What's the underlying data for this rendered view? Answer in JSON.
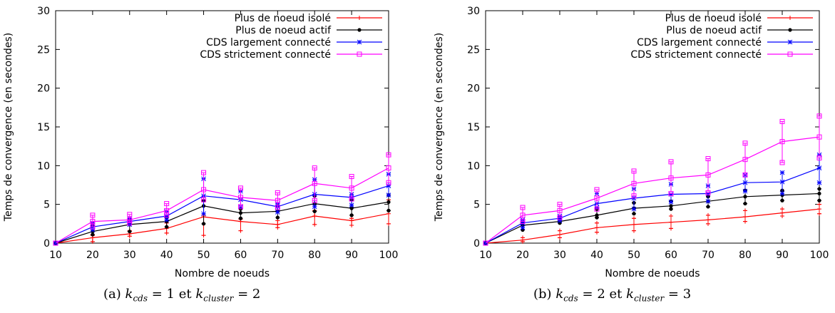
{
  "captions": {
    "a": {
      "label": "(a)",
      "k1": "k",
      "s1": "cds",
      "eq1": "= 1",
      "et": "et",
      "k2": "k",
      "s2": "cluster",
      "eq2": "= 2"
    },
    "b": {
      "label": "(b)",
      "k1": "k",
      "s1": "cds",
      "eq1": "= 2",
      "et": "et",
      "k2": "k",
      "s2": "cluster",
      "eq2": "= 3"
    }
  },
  "chart_data": [
    {
      "type": "line",
      "xlabel": "Nombre de noeuds",
      "ylabel": "Temps de convergence (en secondes)",
      "xlim": [
        10,
        100
      ],
      "ylim": [
        0,
        30
      ],
      "xticks": [
        10,
        20,
        30,
        40,
        50,
        60,
        70,
        80,
        90,
        100
      ],
      "yticks": [
        0,
        5,
        10,
        15,
        20,
        25,
        30
      ],
      "legend_position": "top-right",
      "x": [
        10,
        20,
        30,
        40,
        50,
        60,
        70,
        80,
        90,
        100
      ],
      "series": [
        {
          "name": "Plus de noeud isolé",
          "color": "#ff0000",
          "marker": "plus",
          "values": [
            0,
            0.7,
            1.2,
            1.9,
            3.4,
            2.8,
            2.4,
            3.5,
            2.9,
            3.8
          ],
          "err": [
            [
              0,
              0.2,
              0.9,
              1.3,
              1.0,
              1.6,
              2.0,
              2.4,
              2.3,
              2.5
            ],
            [
              0,
              1.0,
              1.6,
              2.6,
              3.6,
              3.1,
              2.9,
              4.2,
              3.2,
              5.6
            ]
          ]
        },
        {
          "name": "Plus de noeud actif",
          "color": "#000000",
          "marker": "dot",
          "values": [
            0,
            1.5,
            2.4,
            2.8,
            4.8,
            3.9,
            4.1,
            5.1,
            4.5,
            5.3
          ],
          "err": [
            [
              0,
              1.1,
              1.5,
              2.1,
              2.5,
              3.2,
              3.3,
              4.1,
              3.6,
              4.2
            ],
            [
              0,
              2.3,
              3.0,
              3.3,
              5.5,
              4.4,
              4.8,
              6.1,
              5.6,
              6.2
            ]
          ]
        },
        {
          "name": "CDS largement connecté",
          "color": "#0000ff",
          "marker": "star",
          "values": [
            0,
            2.1,
            2.8,
            3.5,
            6.1,
            5.6,
            4.7,
            6.3,
            5.9,
            7.4
          ],
          "err": [
            [
              0,
              1.7,
              2.4,
              3.0,
              3.8,
              4.7,
              4.0,
              4.7,
              4.9,
              6.2
            ],
            [
              0,
              2.6,
              3.2,
              4.1,
              8.3,
              6.7,
              5.1,
              8.2,
              6.3,
              8.9
            ]
          ]
        },
        {
          "name": "CDS strictement connecté",
          "color": "#ff00ff",
          "marker": "square",
          "values": [
            0,
            2.8,
            3.0,
            4.2,
            6.9,
            5.9,
            5.5,
            7.7,
            7.1,
            9.7
          ],
          "err": [
            [
              0,
              2.1,
              2.6,
              3.6,
              5.6,
              4.7,
              4.6,
              5.5,
              5.7,
              7.8
            ],
            [
              0,
              3.6,
              3.7,
              5.1,
              9.1,
              7.1,
              6.5,
              9.7,
              8.6,
              11.4
            ]
          ]
        }
      ]
    },
    {
      "type": "line",
      "xlabel": "Nombre de noeuds",
      "ylabel": "Temps de convergence (en secondes)",
      "xlim": [
        10,
        100
      ],
      "ylim": [
        0,
        30
      ],
      "xticks": [
        10,
        20,
        30,
        40,
        50,
        60,
        70,
        80,
        90,
        100
      ],
      "yticks": [
        0,
        5,
        10,
        15,
        20,
        25,
        30
      ],
      "legend_position": "top-right",
      "x": [
        10,
        20,
        30,
        40,
        50,
        60,
        70,
        80,
        90,
        100
      ],
      "series": [
        {
          "name": "Plus de noeud isolé",
          "color": "#ff0000",
          "marker": "plus",
          "values": [
            0,
            0.4,
            1.1,
            2.0,
            2.4,
            2.7,
            3.0,
            3.4,
            3.9,
            4.4
          ],
          "err": [
            [
              0,
              0.2,
              0.7,
              1.4,
              1.6,
              1.9,
              2.5,
              2.8,
              3.5,
              3.8
            ],
            [
              0,
              0.7,
              1.6,
              2.6,
              3.2,
              3.5,
              3.6,
              4.2,
              4.4,
              5.0
            ]
          ]
        },
        {
          "name": "Plus de noeud actif",
          "color": "#000000",
          "marker": "dot",
          "values": [
            0,
            2.3,
            2.8,
            3.6,
            4.5,
            4.8,
            5.4,
            6.0,
            6.2,
            6.4
          ],
          "err": [
            [
              0,
              1.7,
              2.6,
              3.3,
              3.8,
              4.4,
              4.7,
              5.1,
              5.5,
              5.5
            ],
            [
              0,
              2.6,
              3.2,
              4.4,
              5.2,
              5.4,
              6.0,
              6.8,
              6.8,
              7.0
            ]
          ]
        },
        {
          "name": "CDS largement connecté",
          "color": "#0000ff",
          "marker": "star",
          "values": [
            0,
            2.6,
            3.2,
            5.1,
            5.8,
            6.3,
            6.4,
            7.8,
            7.9,
            9.7
          ],
          "err": [
            [
              0,
              2.0,
              2.9,
              4.6,
              4.4,
              5.3,
              5.4,
              6.7,
              6.4,
              7.8
            ],
            [
              0,
              3.0,
              3.5,
              6.4,
              7.0,
              7.6,
              7.4,
              8.8,
              9.1,
              11.4
            ]
          ]
        },
        {
          "name": "CDS strictement connecté",
          "color": "#ff00ff",
          "marker": "square",
          "values": [
            0,
            3.6,
            4.2,
            5.8,
            7.7,
            8.4,
            8.8,
            10.8,
            13.1,
            13.7
          ],
          "err": [
            [
              0,
              2.8,
              3.3,
              4.4,
              6.1,
              6.4,
              6.5,
              8.8,
              10.4,
              11.0
            ],
            [
              0,
              4.6,
              5.0,
              6.9,
              9.3,
              10.5,
              10.9,
              12.9,
              15.7,
              16.4
            ]
          ]
        }
      ]
    }
  ]
}
